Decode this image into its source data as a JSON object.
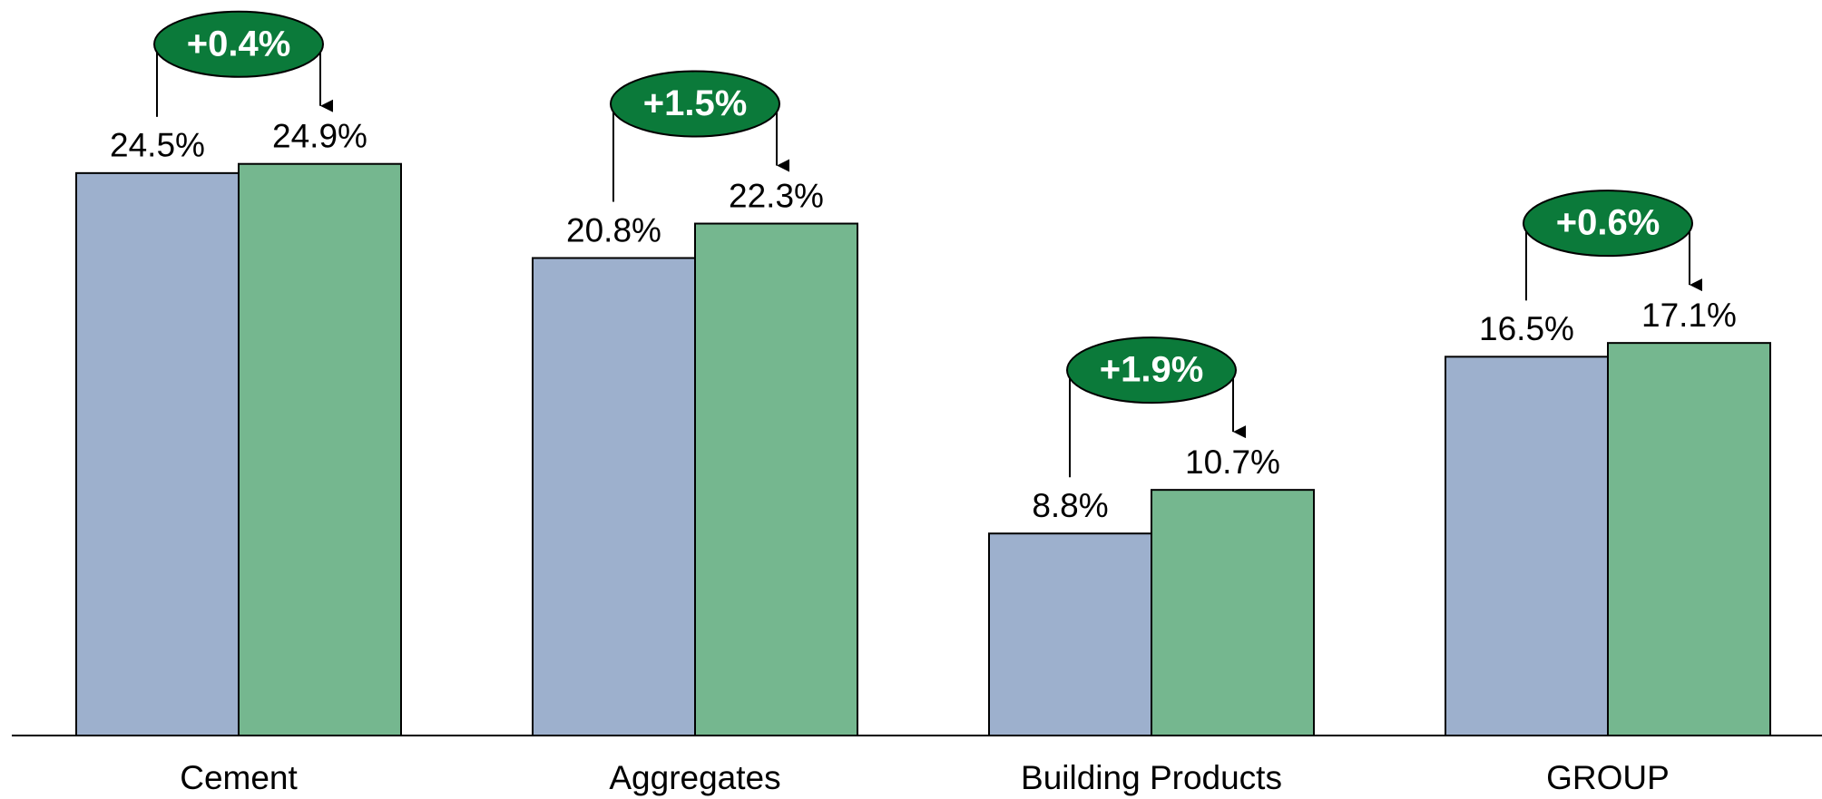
{
  "chart_data": {
    "type": "bar",
    "categories": [
      "Cement",
      "Aggregates",
      "Building Products",
      "GROUP"
    ],
    "series": [
      {
        "color": "#9db0cd",
        "values": [
          24.5,
          20.8,
          8.8,
          16.5
        ],
        "value_labels": [
          "24.5%",
          "20.8%",
          "8.8%",
          "16.5%"
        ]
      },
      {
        "color": "#75b78f",
        "values": [
          24.9,
          22.3,
          10.7,
          17.1
        ],
        "value_labels": [
          "24.9%",
          "22.3%",
          "10.7%",
          "17.1%"
        ]
      }
    ],
    "annotations": [
      "+0.4%",
      "+1.5%",
      "+1.9%",
      "+0.6%"
    ],
    "annotation_color": "#0b7a3a",
    "ylim": [
      0,
      32
    ]
  }
}
